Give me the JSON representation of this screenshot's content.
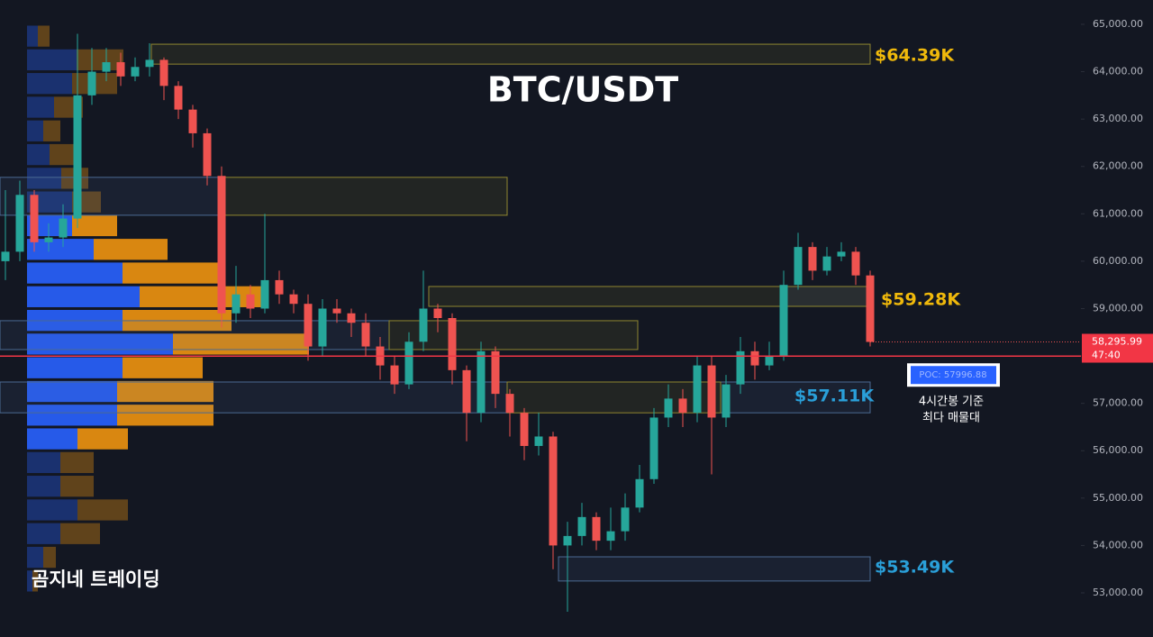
{
  "chart_data": {
    "type": "candlestick",
    "title": "BTC/USDT",
    "watermark": "곰지네 트레이딩",
    "ylim": [
      52068,
      65513
    ],
    "yticks": [
      {
        "value": 53000,
        "label": "53,000.00"
      },
      {
        "value": 54000,
        "label": "54,000.00"
      },
      {
        "value": 55000,
        "label": "55,000.00"
      },
      {
        "value": 56000,
        "label": "56,000.00"
      },
      {
        "value": 57000,
        "label": "57,000.00"
      },
      {
        "value": 58000,
        "label": "58,000.00"
      },
      {
        "value": 59000,
        "label": "59,000.00"
      },
      {
        "value": 60000,
        "label": "60,000.00"
      },
      {
        "value": 61000,
        "label": "61,000.00"
      },
      {
        "value": 62000,
        "label": "62,000.00"
      },
      {
        "value": 63000,
        "label": "63,000.00"
      },
      {
        "value": 64000,
        "label": "64,000.00"
      },
      {
        "value": 65000,
        "label": "65,000.00"
      }
    ],
    "up_color": "#26a69a",
    "down_color": "#ef5350",
    "candles": {
      "open": [
        60000,
        60200,
        61400,
        60400,
        60500,
        60900,
        63500,
        64000,
        64200,
        63900,
        64100,
        64250,
        63700,
        63200,
        62700,
        61800,
        58900,
        59300,
        59000,
        59600,
        59300,
        59100,
        58200,
        59000,
        58900,
        58700,
        58200,
        57800,
        57400,
        58300,
        59000,
        58800,
        57700,
        56800,
        58100,
        57200,
        56800,
        56100,
        56300,
        54000,
        54200,
        54600,
        54100,
        54300,
        54800,
        55400,
        56700,
        57100,
        56800,
        57800,
        56700,
        57400,
        58100,
        57800,
        58000,
        59500,
        60300,
        59800,
        60100,
        60200,
        59700
      ],
      "high": [
        61500,
        61700,
        61500,
        60800,
        61200,
        64800,
        64500,
        64500,
        64400,
        64300,
        64600,
        64300,
        63800,
        63300,
        62800,
        62000,
        59900,
        59500,
        61000,
        59800,
        59400,
        59300,
        59200,
        59200,
        59000,
        58900,
        58400,
        58000,
        58500,
        59800,
        59100,
        58900,
        57800,
        58300,
        58200,
        57300,
        56900,
        56800,
        56400,
        54500,
        54900,
        54700,
        54800,
        55100,
        55700,
        56900,
        57400,
        57300,
        58000,
        58000,
        57600,
        58400,
        58300,
        58300,
        59800,
        60600,
        60400,
        60300,
        60400,
        60300,
        59800
      ],
      "low": [
        59600,
        60000,
        60200,
        60200,
        60300,
        60700,
        63300,
        63800,
        63700,
        63800,
        63900,
        63400,
        63000,
        62400,
        61600,
        58600,
        58700,
        58800,
        58900,
        59100,
        58900,
        57900,
        58000,
        58700,
        58400,
        58000,
        57500,
        57200,
        57300,
        58100,
        58500,
        57400,
        56200,
        56600,
        56900,
        56300,
        55800,
        55900,
        53500,
        52600,
        54000,
        53900,
        53900,
        54100,
        54700,
        55300,
        56500,
        56500,
        56600,
        55500,
        56500,
        57200,
        57500,
        57700,
        57900,
        59400,
        59600,
        59700,
        60000,
        59500,
        58200
      ],
      "close": [
        60200,
        61400,
        60400,
        60500,
        60900,
        63500,
        64000,
        64200,
        63900,
        64100,
        64250,
        63700,
        63200,
        62700,
        61800,
        58900,
        59300,
        59000,
        59600,
        59300,
        59100,
        58200,
        59000,
        58900,
        58700,
        58200,
        57800,
        57400,
        58300,
        59000,
        58800,
        57700,
        56800,
        58100,
        57200,
        56800,
        56100,
        56300,
        54000,
        54200,
        54600,
        54100,
        54300,
        54800,
        55400,
        56700,
        57100,
        56800,
        57800,
        56700,
        57400,
        58100,
        57800,
        58000,
        59500,
        60300,
        59800,
        60100,
        60200,
        59700,
        58295.99
      ]
    },
    "volume_profile": {
      "levels": [
        64750,
        64250,
        63750,
        63250,
        62750,
        62250,
        61750,
        61250,
        60750,
        60250,
        59750,
        59250,
        58750,
        58250,
        57750,
        57250,
        56750,
        56250,
        55750,
        55250,
        54750,
        54250,
        53750,
        53250
      ],
      "buy": [
        12,
        55,
        50,
        30,
        18,
        25,
        38,
        50,
        50,
        74,
        106,
        125,
        106,
        162,
        106,
        100,
        100,
        56,
        37,
        37,
        56,
        37,
        18,
        6
      ],
      "sell": [
        13,
        52,
        50,
        32,
        19,
        30,
        30,
        32,
        50,
        82,
        107,
        137,
        121,
        151,
        89,
        107,
        107,
        56,
        37,
        37,
        56,
        44,
        14,
        6
      ],
      "buy_color": "#2962ff",
      "sell_color": "#f0940f"
    },
    "zones": [
      {
        "low": 64160,
        "high": 64580,
        "value": 64390,
        "label": "$64.39K",
        "color": "#f0b90b"
      },
      {
        "low": 60970,
        "high": 61770
      },
      {
        "low": 59047,
        "high": 59466,
        "value": 59280,
        "label": "$59.28K",
        "color": "#f0b90b"
      },
      {
        "low": 58135,
        "high": 58744
      },
      {
        "low": 56800,
        "high": 57450,
        "value": 57110,
        "label": "$57.11K",
        "color": "#2a9fd8"
      },
      {
        "low": 53250,
        "high": 53760,
        "value": 53490,
        "label": "$53.49K",
        "color": "#2a9fd8"
      }
    ],
    "poc": {
      "value": 57996.88,
      "label": "POC: 57996.88"
    },
    "poc_note": [
      "4시간봉 기준",
      "최다 매물대"
    ],
    "price_tag": {
      "value": 58295.99,
      "label": "58,295.99"
    },
    "countdown": "47:40"
  }
}
